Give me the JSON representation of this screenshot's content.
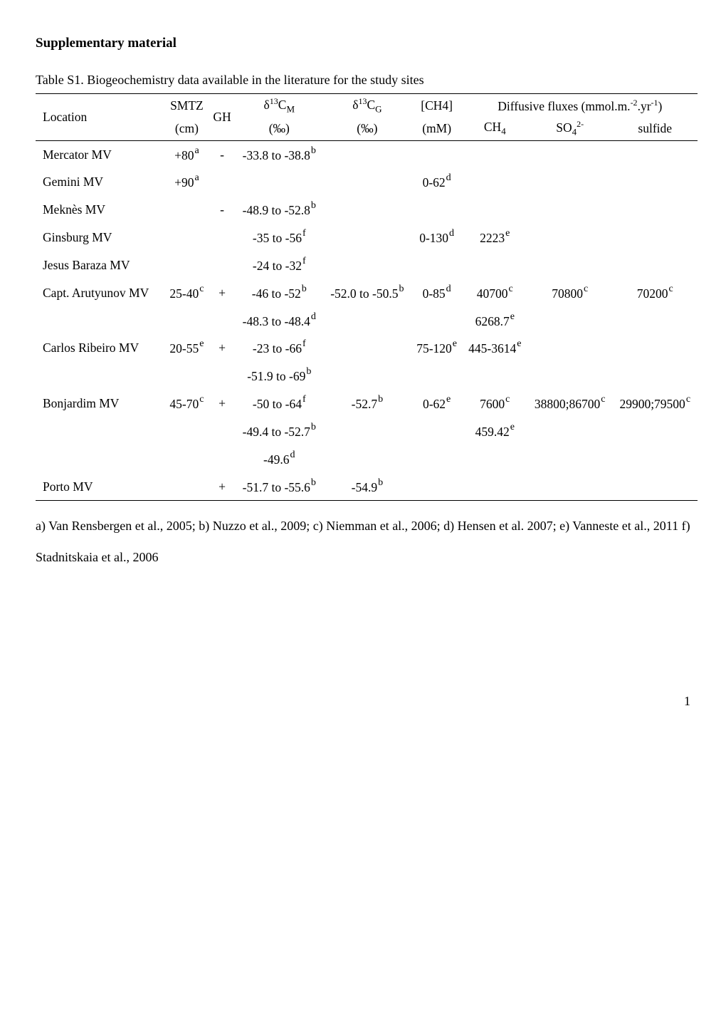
{
  "heading": "Supplementary material",
  "caption": "Table S1. Biogeochemistry data available in the literature for the study sites",
  "header": {
    "location": "Location",
    "smtz": "SMTZ",
    "smtz_unit": "(cm)",
    "gh": "GH",
    "d13cm": "δ",
    "d13cm_iso": "13",
    "d13cm_sub": "M",
    "d13cm_unit": "(‰)",
    "d13cg": "δ",
    "d13cg_iso": "13",
    "d13cg_sub": "G",
    "d13cg_unit": "(‰)",
    "ch4": "[CH4]",
    "ch4_unit": "(mM)",
    "fluxes_label": "Diffusive fluxes (mmol.m.",
    "fluxes_exp1": "-2",
    "fluxes_mid": ".yr",
    "fluxes_exp2": "-1",
    "fluxes_end": ")",
    "flux_ch4": "CH",
    "flux_ch4_sub": "4",
    "flux_so4": "SO",
    "flux_so4_sub": "4",
    "flux_so4_sup": "2-",
    "flux_sulfide": "sulfide"
  },
  "rows": {
    "mercator": {
      "loc": "Mercator MV",
      "smtz": "+80",
      "smtz_ref": "a",
      "gh": "-",
      "d13cm": "-33.8 to -38.8",
      "d13cm_ref": "b"
    },
    "gemini": {
      "loc": "Gemini MV",
      "smtz": "+90",
      "smtz_ref": "a",
      "ch4": "0-62",
      "ch4_ref": "d"
    },
    "meknes": {
      "loc": "Meknès MV",
      "gh": "-",
      "d13cm": "-48.9 to -52.8",
      "d13cm_ref": "b"
    },
    "ginsburg": {
      "loc": "Ginsburg MV",
      "d13cm": "-35 to -56",
      "d13cm_ref": "f",
      "ch4": "0-130",
      "ch4_ref": "d",
      "fch4": "2223",
      "fch4_ref": "e"
    },
    "jesus": {
      "loc": "Jesus Baraza MV",
      "d13cm": "-24 to -32",
      "d13cm_ref": "f"
    },
    "capt": {
      "loc": "Capt. Arutyunov MV",
      "smtz": "25-40",
      "smtz_ref": "c",
      "gh": "+",
      "d13cm1": "-46 to -52",
      "d13cm1_ref": "b",
      "d13cm2": "-48.3 to -48.4",
      "d13cm2_ref": "d",
      "d13cg": "-52.0 to -50.5",
      "d13cg_ref": "b",
      "ch4": "0-85",
      "ch4_ref": "d",
      "fch4_1": "40700",
      "fch4_1_ref": "c",
      "fch4_2": "6268.7",
      "fch4_2_ref": "e",
      "fso4": "70800",
      "fso4_ref": "c",
      "fsulf": "70200",
      "fsulf_ref": "c"
    },
    "carlos": {
      "loc": "Carlos Ribeiro MV",
      "smtz": "20-55",
      "smtz_ref": "e",
      "gh": "+",
      "d13cm1": "-23 to -66",
      "d13cm1_ref": "f",
      "d13cm2": "-51.9 to -69",
      "d13cm2_ref": "b",
      "ch4": "75-120",
      "ch4_ref": "e",
      "fch4": "445-3614",
      "fch4_ref": "e"
    },
    "bonjardim": {
      "loc": "Bonjardim MV",
      "smtz": "45-70",
      "smtz_ref": "c",
      "gh": "+",
      "d13cm1": "-50 to -64",
      "d13cm1_ref": "f",
      "d13cm2": "-49.4 to -52.7",
      "d13cm2_ref": "b",
      "d13cm3": "-49.6",
      "d13cm3_ref": "d",
      "d13cg": "-52.7",
      "d13cg_ref": "b",
      "ch4": "0-62",
      "ch4_ref": "e",
      "fch4_1": "7600",
      "fch4_1_ref": "c",
      "fch4_2": "459.42",
      "fch4_2_ref": "e",
      "fso4": "38800;86700",
      "fso4_ref": "c",
      "fsulf": "29900;79500",
      "fsulf_ref": "c"
    },
    "porto": {
      "loc": "Porto MV",
      "gh": "+",
      "d13cm": "-51.7 to -55.6",
      "d13cm_ref": "b",
      "d13cg": "-54.9",
      "d13cg_ref": "b"
    }
  },
  "references": "a) Van Rensbergen et al., 2005; b) Nuzzo et al., 2009; c) Niemman et al., 2006; d) Hensen et al. 2007; e) Vanneste et al., 2011 f) Stadnitskaia et al., 2006",
  "page_number": "1"
}
